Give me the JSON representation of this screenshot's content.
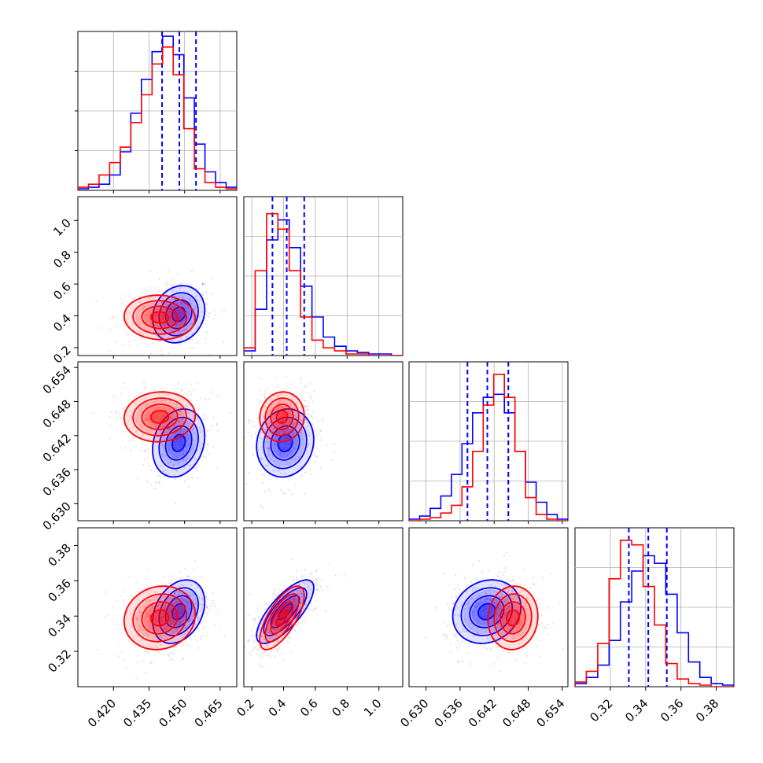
{
  "chart_data": {
    "type": "corner",
    "title": "",
    "grid": true,
    "colors": {
      "series_a": "#0000ff",
      "series_b": "#ff0000"
    },
    "quantile_line_style": "dashed",
    "parameters": [
      {
        "index": 0,
        "range": [
          0.405,
          0.472
        ],
        "ticks": [
          0.42,
          0.435,
          0.45,
          0.465
        ],
        "tick_labels": [
          "0.420",
          "0.435",
          "0.450",
          "0.465"
        ]
      },
      {
        "index": 1,
        "range": [
          0.15,
          1.15
        ],
        "ticks": [
          0.2,
          0.4,
          0.6,
          0.8,
          1.0
        ],
        "tick_labels": [
          "0.2",
          "0.4",
          "0.6",
          "0.8",
          "1.0"
        ]
      },
      {
        "index": 2,
        "range": [
          0.627,
          0.655
        ],
        "ticks": [
          0.63,
          0.636,
          0.642,
          0.648,
          0.654
        ],
        "tick_labels": [
          "0.630",
          "0.636",
          "0.642",
          "0.648",
          "0.654"
        ]
      },
      {
        "index": 3,
        "range": [
          0.3,
          0.39
        ],
        "ticks": [
          0.32,
          0.34,
          0.36,
          0.38
        ],
        "tick_labels": [
          "0.32",
          "0.34",
          "0.36",
          "0.38"
        ]
      }
    ],
    "series": [
      {
        "color": "blue",
        "means": [
          0.4475,
          0.41,
          0.6407,
          0.3425
        ],
        "sds": [
          0.0055,
          0.09,
          0.003,
          0.009
        ],
        "quantiles": [
          [
            0.4405,
            0.4478,
            0.4548
          ],
          [
            0.33,
            0.42,
            0.53
          ],
          [
            0.6373,
            0.6408,
            0.6445
          ],
          [
            0.3305,
            0.3415,
            0.352
          ]
        ],
        "corr": {
          "0-1": 0.15,
          "0-2": 0.2,
          "0-3": 0.3,
          "1-2": 0.1,
          "1-3": 0.75,
          "2-3": 0.15
        },
        "hist": [
          [
            0.01,
            0.02,
            0.04,
            0.1,
            0.25,
            0.5,
            0.72,
            0.9,
            1.0,
            0.88,
            0.6,
            0.3,
            0.12,
            0.05,
            0.02
          ],
          [
            0.03,
            0.3,
            0.75,
            0.88,
            0.7,
            0.45,
            0.25,
            0.12,
            0.06,
            0.03,
            0.02,
            0.01,
            0.01,
            0.0
          ],
          [
            0.01,
            0.03,
            0.08,
            0.16,
            0.3,
            0.5,
            0.7,
            0.8,
            0.82,
            0.7,
            0.45,
            0.25,
            0.12,
            0.04,
            0.01
          ],
          [
            0.02,
            0.06,
            0.14,
            0.3,
            0.55,
            0.75,
            0.85,
            0.8,
            0.6,
            0.35,
            0.16,
            0.06,
            0.02,
            0.01
          ]
        ]
      },
      {
        "color": "red",
        "means": [
          0.4395,
          0.39,
          0.6453,
          0.339
        ],
        "sds": [
          0.0075,
          0.07,
          0.0022,
          0.009
        ],
        "quantiles": [],
        "corr": {
          "0-1": -0.05,
          "0-2": 0.05,
          "0-3": 0.1,
          "1-2": 0.05,
          "1-3": 0.7,
          "2-3": 0.05
        },
        "hist": [
          [
            0.02,
            0.04,
            0.1,
            0.18,
            0.28,
            0.44,
            0.62,
            0.82,
            0.93,
            0.75,
            0.4,
            0.14,
            0.05,
            0.02,
            0.01
          ],
          [
            0.05,
            0.55,
            0.92,
            0.82,
            0.55,
            0.25,
            0.1,
            0.05,
            0.03,
            0.01,
            0.01,
            0.0,
            0.0,
            0.0
          ],
          [
            0.0,
            0.01,
            0.02,
            0.05,
            0.1,
            0.22,
            0.45,
            0.75,
            0.95,
            0.8,
            0.45,
            0.15,
            0.04,
            0.01,
            0.0
          ],
          [
            0.03,
            0.1,
            0.28,
            0.7,
            0.95,
            0.92,
            0.65,
            0.4,
            0.15,
            0.05,
            0.02,
            0.01,
            0.0,
            0.0
          ]
        ]
      }
    ]
  }
}
